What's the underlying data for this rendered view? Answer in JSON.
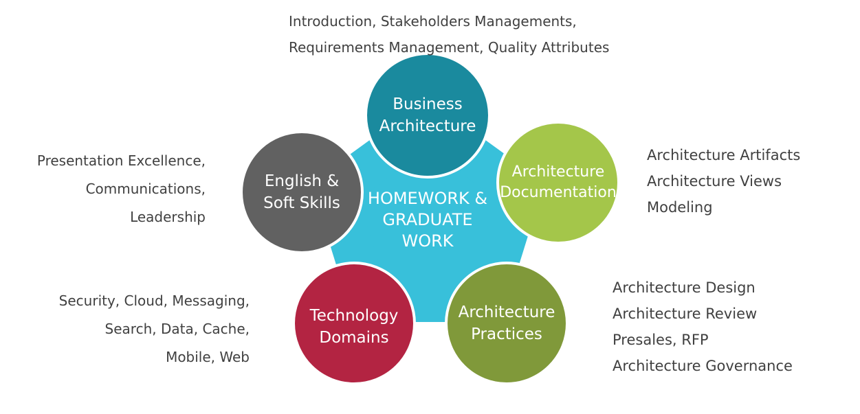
{
  "center": {
    "lines": [
      "HOMEWORK &",
      "GRADUATE",
      "WORK"
    ],
    "color": "#38C0DA"
  },
  "nodes": {
    "business": {
      "lines": [
        "Business",
        "Architecture"
      ],
      "color": "#1A8A9E",
      "details": [
        "Introduction, Stakeholders Managements,",
        "Requirements Management, Quality Attributes"
      ]
    },
    "documentation": {
      "lines": [
        "Architecture",
        "Documentation"
      ],
      "color": "#A4C64A",
      "details": [
        "Architecture Artifacts",
        "Architecture Views",
        "Modeling"
      ]
    },
    "practices": {
      "lines": [
        "Architecture",
        "Practices"
      ],
      "color": "#80993A",
      "details": [
        "Architecture Design",
        "Architecture Review",
        "Presales, RFP",
        "Architecture Governance"
      ]
    },
    "technology": {
      "lines": [
        "Technology",
        "Domains"
      ],
      "color": "#B32442",
      "details": [
        "Security, Cloud, Messaging,",
        "Search, Data, Cache,",
        "Mobile, Web"
      ]
    },
    "english": {
      "lines": [
        "English &",
        "Soft Skills"
      ],
      "color": "#616161",
      "details": [
        "Presentation Excellence,",
        "Communications,",
        "Leadership"
      ]
    }
  }
}
